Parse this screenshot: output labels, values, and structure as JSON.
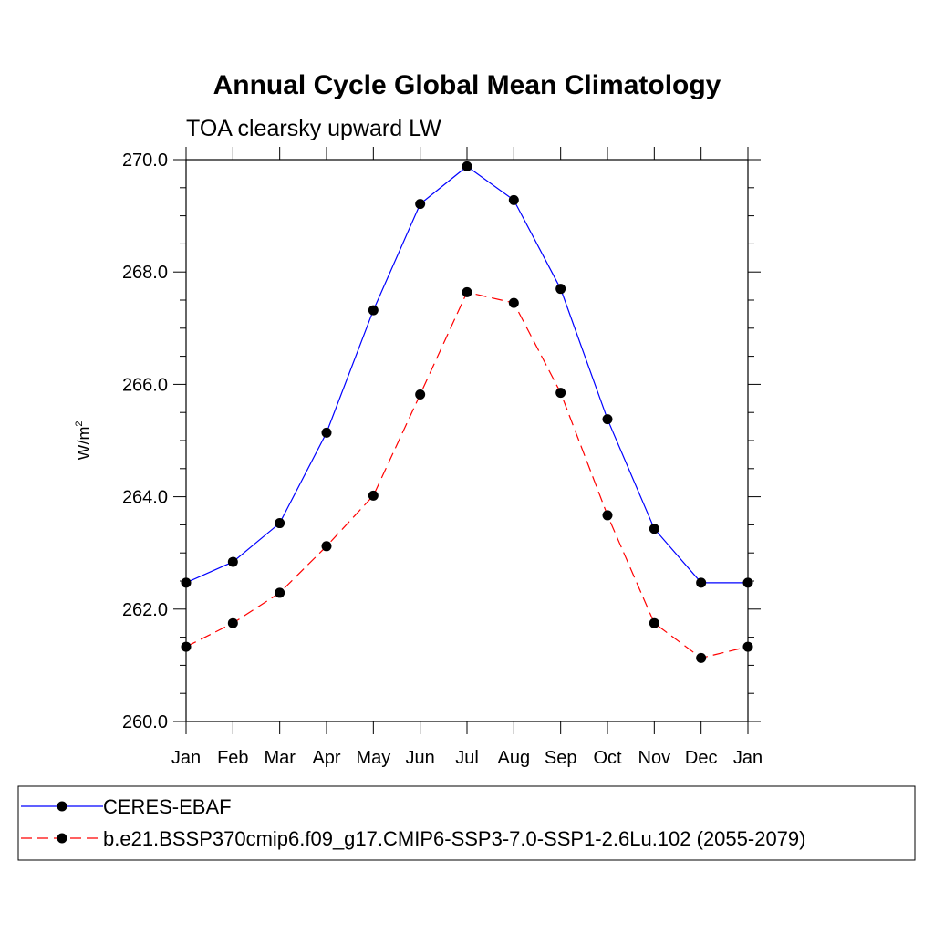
{
  "chart_data": {
    "type": "line",
    "title": "Annual Cycle Global Mean Climatology",
    "subtitle": "TOA clearsky upward LW",
    "xlabel": "",
    "ylabel": "W/m",
    "ylabel_superscript": "2",
    "categories": [
      "Jan",
      "Feb",
      "Mar",
      "Apr",
      "May",
      "Jun",
      "Jul",
      "Aug",
      "Sep",
      "Oct",
      "Nov",
      "Dec",
      "Jan"
    ],
    "ylim": [
      260.0,
      270.0
    ],
    "yticks": [
      "260.0",
      "262.0",
      "264.0",
      "266.0",
      "268.0",
      "270.0"
    ],
    "ytick_values": [
      260,
      262,
      264,
      266,
      268,
      270
    ],
    "y_minor_step": 0.5,
    "grid": false,
    "legend_position": "bottom",
    "series": [
      {
        "name": "CERES-EBAF",
        "color": "#0000ff",
        "style": "solid",
        "marker": "circle",
        "values": [
          262.47,
          262.84,
          263.53,
          265.14,
          267.32,
          269.21,
          269.88,
          269.28,
          267.7,
          265.38,
          263.43,
          262.47,
          262.47
        ]
      },
      {
        "name": "b.e21.BSSP370cmip6.f09_g17.CMIP6-SSP3-7.0-SSP1-2.6Lu.102 (2055-2079)",
        "color": "#ff0000",
        "style": "dashed",
        "marker": "circle",
        "values": [
          261.33,
          261.75,
          262.29,
          263.12,
          264.02,
          265.82,
          267.64,
          267.45,
          265.85,
          263.67,
          261.75,
          261.13,
          261.33
        ]
      }
    ]
  }
}
